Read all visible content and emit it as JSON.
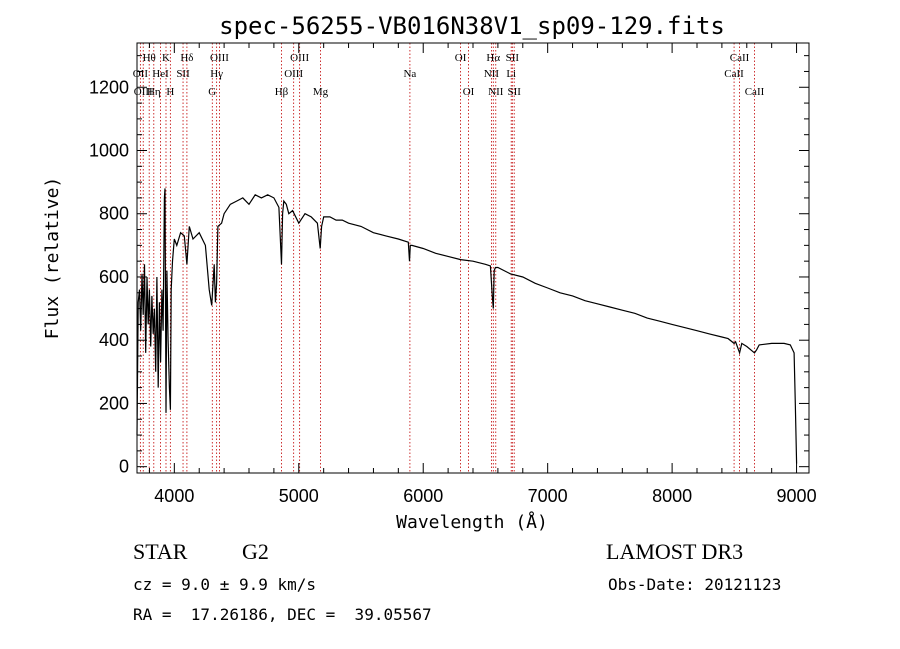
{
  "chart_data": {
    "type": "line",
    "title": "spec-56255-VB016N38V1_sp09-129.fits",
    "xlabel": "Wavelength (Å)",
    "ylabel": "Flux (relative)",
    "xlim": [
      3700,
      9100
    ],
    "ylim": [
      -20,
      1340
    ],
    "xticks": [
      4000,
      5000,
      6000,
      7000,
      8000,
      9000
    ],
    "yticks": [
      0,
      200,
      400,
      600,
      800,
      1000,
      1200
    ],
    "grid": false,
    "line_color": "#000000",
    "marker_color": "#c00000",
    "series": [
      {
        "name": "flux",
        "x": [
          3700,
          3710,
          3720,
          3730,
          3740,
          3750,
          3760,
          3770,
          3780,
          3790,
          3800,
          3810,
          3820,
          3830,
          3840,
          3850,
          3860,
          3870,
          3880,
          3890,
          3900,
          3910,
          3920,
          3925,
          3933,
          3940,
          3950,
          3960,
          3968,
          3975,
          3985,
          4000,
          4020,
          4050,
          4080,
          4101,
          4120,
          4150,
          4200,
          4250,
          4280,
          4300,
          4320,
          4330,
          4340,
          4350,
          4380,
          4400,
          4450,
          4500,
          4550,
          4600,
          4650,
          4700,
          4750,
          4800,
          4840,
          4861,
          4870,
          4880,
          4900,
          4920,
          4950,
          5000,
          5050,
          5100,
          5150,
          5172,
          5183,
          5200,
          5250,
          5300,
          5350,
          5400,
          5500,
          5600,
          5700,
          5800,
          5880,
          5890,
          5896,
          5910,
          6000,
          6100,
          6200,
          6300,
          6400,
          6500,
          6540,
          6555,
          6563,
          6570,
          6580,
          6600,
          6700,
          6800,
          6900,
          7000,
          7100,
          7200,
          7300,
          7400,
          7500,
          7600,
          7700,
          7800,
          7900,
          8000,
          8100,
          8200,
          8300,
          8400,
          8450,
          8498,
          8510,
          8542,
          8560,
          8600,
          8662,
          8680,
          8700,
          8800,
          8900,
          8950,
          8980,
          8990,
          9000
        ],
        "y": [
          100,
          520,
          560,
          430,
          610,
          480,
          640,
          360,
          600,
          450,
          560,
          380,
          540,
          420,
          500,
          300,
          600,
          250,
          520,
          330,
          560,
          430,
          850,
          880,
          170,
          620,
          400,
          250,
          180,
          560,
          650,
          720,
          700,
          740,
          730,
          640,
          760,
          720,
          740,
          700,
          560,
          510,
          640,
          520,
          580,
          760,
          770,
          800,
          830,
          840,
          850,
          830,
          860,
          850,
          860,
          850,
          820,
          640,
          800,
          840,
          830,
          800,
          810,
          770,
          800,
          790,
          770,
          690,
          760,
          790,
          790,
          780,
          780,
          770,
          760,
          740,
          730,
          720,
          710,
          650,
          700,
          700,
          690,
          675,
          665,
          655,
          650,
          640,
          635,
          540,
          500,
          620,
          630,
          630,
          610,
          600,
          580,
          565,
          550,
          540,
          525,
          515,
          505,
          495,
          485,
          470,
          460,
          450,
          440,
          430,
          420,
          410,
          405,
          390,
          395,
          360,
          390,
          380,
          360,
          370,
          385,
          390,
          390,
          385,
          360,
          200,
          10
        ]
      }
    ],
    "lines": [
      {
        "w": 3727,
        "t": "OII",
        "row": 2
      },
      {
        "w": 3750,
        "t": "OIII",
        "row": 3
      },
      {
        "w": 3798,
        "t": "Hθ",
        "row": 1
      },
      {
        "w": 3835,
        "t": "Hη",
        "row": 3
      },
      {
        "w": 3889,
        "t": "HeI",
        "row": 2
      },
      {
        "w": 3933,
        "t": "K",
        "row": 1
      },
      {
        "w": 3968,
        "t": "H",
        "row": 3
      },
      {
        "w": 4070,
        "t": "SII",
        "row": 2
      },
      {
        "w": 4101,
        "t": "Hδ",
        "row": 1
      },
      {
        "w": 4305,
        "t": "G",
        "row": 3
      },
      {
        "w": 4340,
        "t": "Hγ",
        "row": 2
      },
      {
        "w": 4363,
        "t": "OIII",
        "row": 1
      },
      {
        "w": 4861,
        "t": "Hβ",
        "row": 3
      },
      {
        "w": 4959,
        "t": "OIII",
        "row": 2
      },
      {
        "w": 5007,
        "t": "OIII",
        "row": 1
      },
      {
        "w": 5175,
        "t": "Mg",
        "row": 3
      },
      {
        "w": 5893,
        "t": "Na",
        "row": 2
      },
      {
        "w": 6300,
        "t": "OI",
        "row": 1
      },
      {
        "w": 6364,
        "t": "OI",
        "row": 3
      },
      {
        "w": 6548,
        "t": "NII",
        "row": 2
      },
      {
        "w": 6563,
        "t": "Hα",
        "row": 1
      },
      {
        "w": 6583,
        "t": "NII",
        "row": 3
      },
      {
        "w": 6707,
        "t": "Li",
        "row": 2
      },
      {
        "w": 6716,
        "t": "SII",
        "row": 1
      },
      {
        "w": 6731,
        "t": "SII",
        "row": 3
      },
      {
        "w": 8498,
        "t": "CaII",
        "row": 2
      },
      {
        "w": 8542,
        "t": "CaII",
        "row": 1
      },
      {
        "w": 8662,
        "t": "CaII",
        "row": 3
      }
    ]
  },
  "info": {
    "class_label": "STAR",
    "subclass": "G2",
    "survey": "LAMOST DR3",
    "cz": "cz = 9.0 ± 9.9 km/s",
    "obs_date": "Obs-Date: 20121123",
    "radec": "RA =  17.26186, DEC =  39.05567"
  }
}
